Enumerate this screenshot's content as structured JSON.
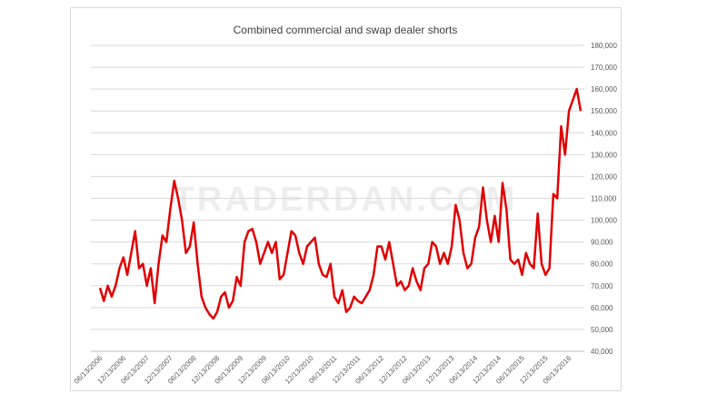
{
  "chart_data": {
    "type": "line",
    "title": "Combined commercial and swap dealer shorts",
    "watermark": "TRADERDAN.COM",
    "categories": [
      "06/13/2006",
      null,
      null,
      null,
      null,
      null,
      "12/13/2006",
      null,
      null,
      null,
      null,
      null,
      "06/13/2007",
      null,
      null,
      null,
      null,
      null,
      "12/13/2007",
      null,
      null,
      null,
      null,
      null,
      "06/13/2008",
      null,
      null,
      null,
      null,
      null,
      "12/13/2008",
      null,
      null,
      null,
      null,
      null,
      "06/13/2009",
      null,
      null,
      null,
      null,
      null,
      "12/13/2009",
      null,
      null,
      null,
      null,
      null,
      "06/13/2010",
      null,
      null,
      null,
      null,
      null,
      "12/13/2010",
      null,
      null,
      null,
      null,
      null,
      "06/13/2011",
      null,
      null,
      null,
      null,
      null,
      "12/13/2011",
      null,
      null,
      null,
      null,
      null,
      "06/13/2012",
      null,
      null,
      null,
      null,
      null,
      "12/13/2012",
      null,
      null,
      null,
      null,
      null,
      "06/13/2013",
      null,
      null,
      null,
      null,
      null,
      "12/13/2013",
      null,
      null,
      null,
      null,
      null,
      "06/13/2014",
      null,
      null,
      null,
      null,
      null,
      "12/13/2014",
      null,
      null,
      null,
      null,
      null,
      "06/13/2015",
      null,
      null,
      null,
      null,
      null,
      "12/13/2015",
      null,
      null,
      null,
      null,
      null,
      "06/13/2016",
      null,
      null,
      null
    ],
    "series": [
      {
        "color": "#e00000",
        "values": [
          69000,
          63000,
          70000,
          65000,
          70000,
          78000,
          83000,
          75000,
          85000,
          95000,
          78000,
          80000,
          70000,
          78000,
          62000,
          80000,
          93000,
          90000,
          105000,
          118000,
          110000,
          100000,
          85000,
          88000,
          99000,
          80000,
          65000,
          60000,
          57000,
          55000,
          58000,
          65000,
          67000,
          60000,
          63000,
          74000,
          70000,
          90000,
          95000,
          96000,
          90000,
          80000,
          85000,
          90000,
          85000,
          90000,
          73000,
          75000,
          85000,
          95000,
          93000,
          85000,
          80000,
          88000,
          90000,
          92000,
          80000,
          75000,
          74000,
          80000,
          65000,
          62000,
          68000,
          58000,
          60000,
          65000,
          63000,
          62000,
          65000,
          68000,
          75000,
          88000,
          88000,
          82000,
          90000,
          80000,
          70000,
          72000,
          68000,
          70000,
          78000,
          72000,
          68000,
          78000,
          80000,
          90000,
          88000,
          80000,
          85000,
          80000,
          88000,
          107000,
          100000,
          85000,
          78000,
          80000,
          92000,
          97000,
          115000,
          100000,
          90000,
          102000,
          90000,
          117000,
          105000,
          82000,
          80000,
          82000,
          75000,
          85000,
          80000,
          78000,
          103000,
          80000,
          75000,
          78000,
          112000,
          110000,
          143000,
          130000,
          150000,
          155000,
          160000,
          150000
        ]
      }
    ],
    "ylim": [
      40000,
      180000
    ],
    "yticks": [
      {
        "value": 40000,
        "label": "40,000"
      },
      {
        "value": 50000,
        "label": "50,000"
      },
      {
        "value": 60000,
        "label": "60,000"
      },
      {
        "value": 70000,
        "label": "70,000"
      },
      {
        "value": 80000,
        "label": "80,000"
      },
      {
        "value": 90000,
        "label": "90,000"
      },
      {
        "value": 100000,
        "label": "100,000"
      },
      {
        "value": 110000,
        "label": "110,000"
      },
      {
        "value": 120000,
        "label": "120,000"
      },
      {
        "value": 130000,
        "label": "130,000"
      },
      {
        "value": 140000,
        "label": "140,000"
      },
      {
        "value": 150000,
        "label": "150,000"
      },
      {
        "value": 160000,
        "label": "160,000"
      },
      {
        "value": 170000,
        "label": "170,000"
      },
      {
        "value": 180000,
        "label": "180,000"
      }
    ],
    "grid": true
  }
}
